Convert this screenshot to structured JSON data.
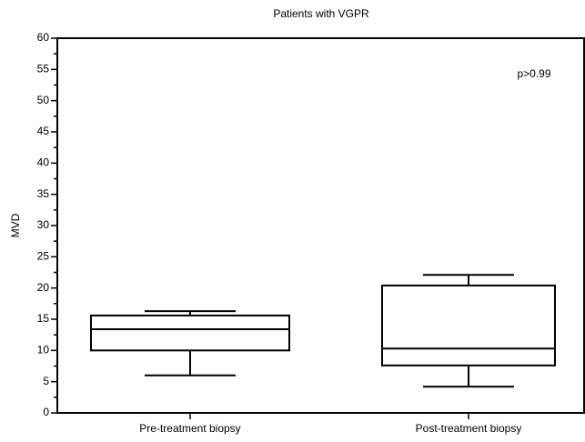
{
  "chart_data": {
    "type": "box",
    "title": "Patients with VGPR",
    "y_label": "MVD",
    "categories": [
      "Pre-treatment biopsy",
      "Post-treatment biopsy"
    ],
    "boxes": [
      {
        "whislo": 6.0,
        "q1": 10.0,
        "med": 13.4,
        "q3": 15.6,
        "whishi": 16.3
      },
      {
        "whislo": 4.2,
        "q1": 7.6,
        "med": 10.3,
        "q3": 20.4,
        "whishi": 22.1
      }
    ],
    "color": "#000000",
    "ylim": [
      0,
      60
    ],
    "yticks": [
      0,
      5,
      10,
      15,
      20,
      25,
      30,
      35,
      40,
      45,
      50,
      55,
      60
    ],
    "yminorticks": [
      2.5,
      7.5,
      12.5,
      17.5,
      22.5,
      27.5,
      32.5,
      37.5,
      42.5,
      47.5,
      52.5,
      57.5
    ],
    "annotation": "p>0.99"
  }
}
